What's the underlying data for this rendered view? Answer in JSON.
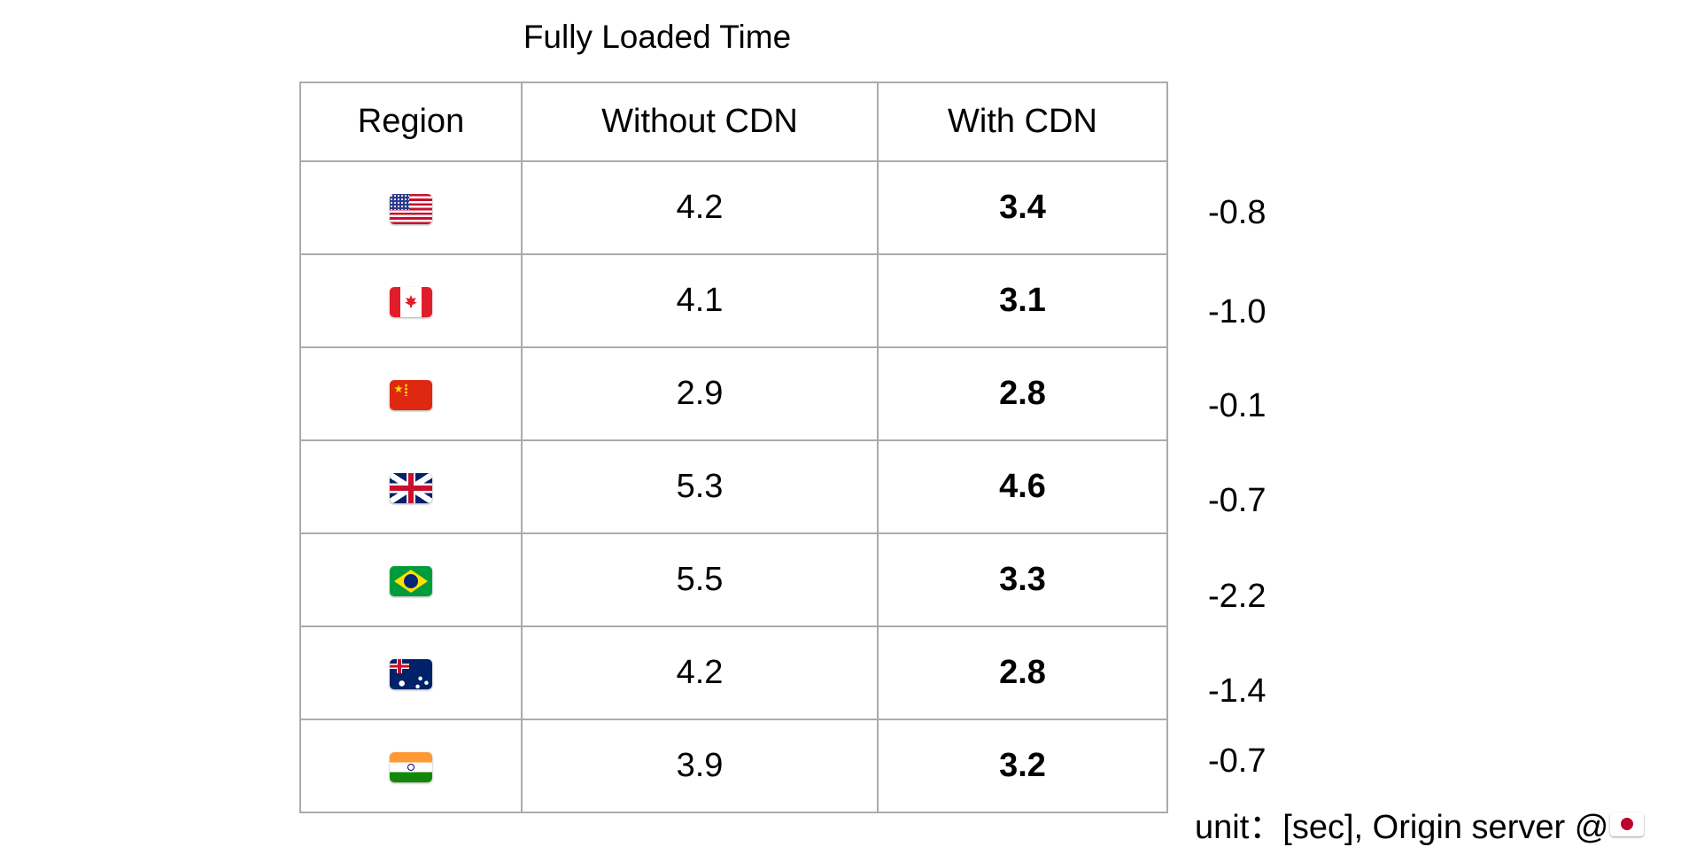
{
  "title": "Fully Loaded Time",
  "table": {
    "headers": {
      "region": "Region",
      "without_cdn": "Without CDN",
      "with_cdn": "With CDN"
    },
    "rows": [
      {
        "flag": "flag-united-states",
        "without": "4.2",
        "with": "3.4",
        "diff": "-0.8"
      },
      {
        "flag": "flag-canada",
        "without": "4.1",
        "with": "3.1",
        "diff": "-1.0"
      },
      {
        "flag": "flag-china",
        "without": "2.9",
        "with": "2.8",
        "diff": "-0.1"
      },
      {
        "flag": "flag-united-kingdom",
        "without": "5.3",
        "with": "4.6",
        "diff": "-0.7"
      },
      {
        "flag": "flag-brazil",
        "without": "5.5",
        "with": "3.3",
        "diff": "-2.2"
      },
      {
        "flag": "flag-australia",
        "without": "4.2",
        "with": "2.8",
        "diff": "-1.4"
      },
      {
        "flag": "flag-india",
        "without": "3.9",
        "with": "3.2",
        "diff": "-0.7"
      }
    ]
  },
  "footnote": {
    "text": "unit：[sec], Origin server @",
    "flag": "flag-japan"
  },
  "colors": {
    "grid": "#ababab",
    "text": "#000000",
    "background": "#ffffff"
  }
}
